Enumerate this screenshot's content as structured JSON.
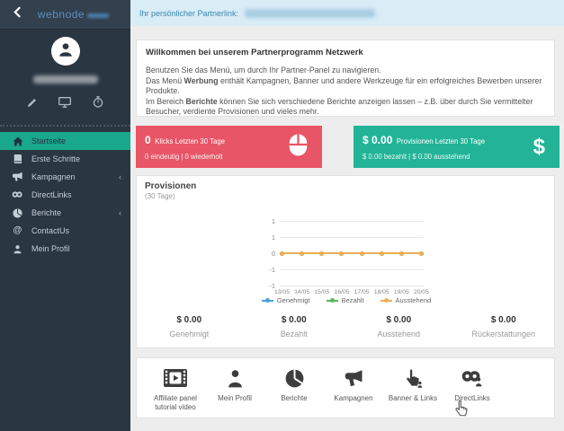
{
  "header": {
    "logo": "webnode"
  },
  "topbar": {
    "label": "Ihr persönlicher Partnerlink:"
  },
  "sidebar": {
    "items": [
      {
        "label": "Startseite"
      },
      {
        "label": "Erste Schritte"
      },
      {
        "label": "Kampagnen",
        "chevron": "‹"
      },
      {
        "label": "DirectLinks"
      },
      {
        "label": "Berichte",
        "chevron": "‹"
      },
      {
        "label": "ContactUs"
      },
      {
        "label": "Mein Profil"
      }
    ]
  },
  "welcome": {
    "title": "Willkommen bei unserem Partnerprogramm Netzwerk",
    "line1": "Benutzen Sie das Menü, um durch Ihr Partner-Panel zu navigieren.",
    "line2_pre": "Das Menü ",
    "line2_bold": "Werbung",
    "line2_post": " enthält Kampagnen, Banner und andere Werkzeuge für ein erfolgreiches Bewerben unserer Produkte.",
    "line3_pre": "Im Bereich ",
    "line3_bold": "Berichte",
    "line3_post": " können Sie sich verschiedene Berichte anzeigen lassen – z.B. über durch Sie vermittelter Besucher, verdiente Provisionen und vieles mehr."
  },
  "stats": {
    "clicks": {
      "value": "0",
      "label": "Klicks Letzten 30 Tage",
      "sub": "0 eindeutig | 0 wiederholt",
      "color": "#e85566"
    },
    "provisions": {
      "value": "$ 0.00",
      "label": "Provisionen Letzten 30 Tage",
      "sub": "$ 0.00 bezahlt | $ 0.00 ausstehend",
      "color": "#23b498",
      "currency_icon": "$"
    }
  },
  "chart_data": {
    "type": "line",
    "title": "Provisionen",
    "subtitle": "(30 Tage)",
    "x": [
      "13/05",
      "14/05",
      "15/05",
      "16/05",
      "17/05",
      "18/05",
      "19/05",
      "20/05"
    ],
    "series": [
      {
        "name": "Genehmigt",
        "color": "#4a9fd8",
        "values": [
          0,
          0,
          0,
          0,
          0,
          0,
          0,
          0
        ]
      },
      {
        "name": "Bezahlt",
        "color": "#5cb85c",
        "values": [
          0,
          0,
          0,
          0,
          0,
          0,
          0,
          0
        ]
      },
      {
        "name": "Ausstehend",
        "color": "#ecaf53",
        "values": [
          0,
          0,
          0,
          0,
          0,
          0,
          0,
          0
        ]
      }
    ],
    "y_ticks": [
      "1",
      "1",
      "0",
      "-1",
      "-1"
    ],
    "ylim": [
      -1,
      1
    ],
    "grid": true,
    "legend_position": "bottom"
  },
  "summary": [
    {
      "value": "$ 0.00",
      "label": "Genehmigt"
    },
    {
      "value": "$ 0.00",
      "label": "Bezahlt"
    },
    {
      "value": "$ 0.00",
      "label": "Ausstehend"
    },
    {
      "value": "$ 0.00",
      "label": "Rückerstattungen"
    }
  ],
  "shortcuts": [
    {
      "label": "Affiliate panel tutorial video"
    },
    {
      "label": "Mein Profil"
    },
    {
      "label": "Berichte"
    },
    {
      "label": "Kampagnen"
    },
    {
      "label": "Banner & Links"
    },
    {
      "label": "DirectLinks"
    }
  ]
}
